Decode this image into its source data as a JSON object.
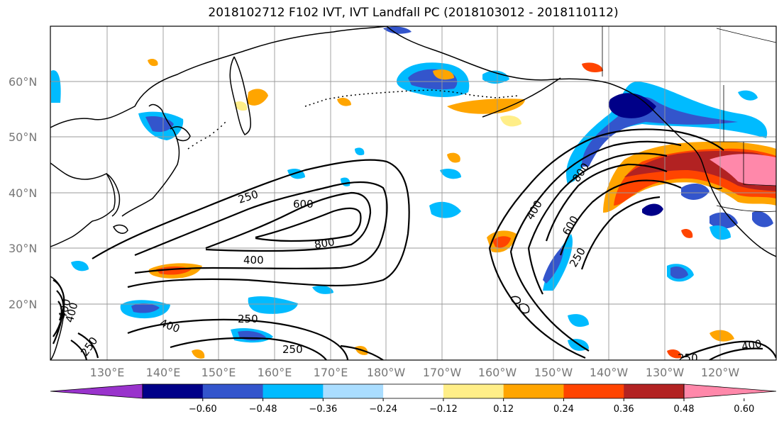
{
  "title": "2018102712 F102 IVT, IVT Landfall PC (2018103012 - 2018110112)",
  "lat_labels": [
    "60°N",
    "50°N",
    "40°N",
    "30°N",
    "20°N"
  ],
  "lon_labels": [
    "130°E",
    "140°E",
    "150°E",
    "160°E",
    "170°E",
    "180°W",
    "170°W",
    "160°W",
    "150°W",
    "140°W",
    "130°W",
    "120°W"
  ],
  "contour_labels": [
    "250",
    "600",
    "800",
    "400",
    "400",
    "800",
    "400",
    "600",
    "250",
    "250",
    "400",
    "250",
    "250",
    "400",
    "400",
    "250"
  ],
  "colorbar": {
    "ticks": [
      "−0.60",
      "−0.48",
      "−0.36",
      "−0.24",
      "−0.12",
      "0.12",
      "0.24",
      "0.36",
      "0.48",
      "0.60"
    ],
    "colors": [
      "#9933cc",
      "#000088",
      "#3355cc",
      "#00bbff",
      "#aaddff",
      "#ffffff",
      "#ffee88",
      "#ffa500",
      "#ff4400",
      "#b22222",
      "#ff88aa"
    ]
  },
  "palette": {
    "blue_dark": "#000088",
    "blue_mid": "#3355cc",
    "blue_light": "#00bbff",
    "blue_pale": "#aaddff",
    "yellow": "#ffee88",
    "orange": "#ffa500",
    "red_orange": "#ff4400",
    "dark_red": "#b22222",
    "pink": "#ff88aa"
  }
}
